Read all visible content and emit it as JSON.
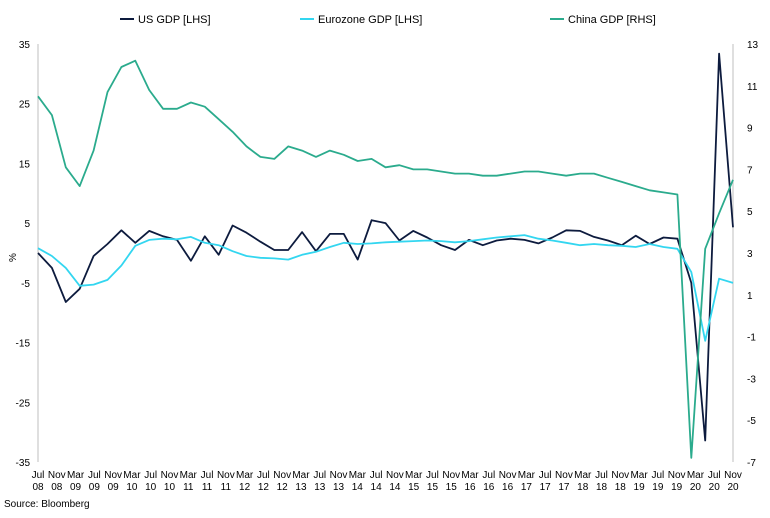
{
  "chart_data": {
    "type": "line",
    "title": "",
    "ylabel": "%",
    "source": "Source: Bloomberg",
    "x": [
      "Jul 08",
      "Nov 08",
      "Mar 09",
      "Jul 09",
      "Nov 09",
      "Mar 10",
      "Jul 10",
      "Nov 10",
      "Mar 11",
      "Jul 11",
      "Nov 11",
      "Mar 12",
      "Jul 12",
      "Nov 12",
      "Mar 13",
      "Jul 13",
      "Nov 13",
      "Mar 14",
      "Jul 14",
      "Nov 14",
      "Mar 15",
      "Jul 15",
      "Nov 15",
      "Mar 16",
      "Jul 16",
      "Nov 16",
      "Mar 17",
      "Jul 17",
      "Nov 17",
      "Mar 18",
      "Jul 18",
      "Nov 18",
      "Mar 19",
      "Jul 19",
      "Nov 19",
      "Mar 20",
      "Jul 20",
      "Nov 20"
    ],
    "x_tick_labels": [
      {
        "m": "Jul",
        "y": "08"
      },
      {
        "m": "Nov",
        "y": "08"
      },
      {
        "m": "Mar",
        "y": "09"
      },
      {
        "m": "Jul",
        "y": "09"
      },
      {
        "m": "Nov",
        "y": "09"
      },
      {
        "m": "Mar",
        "y": "10"
      },
      {
        "m": "Jul",
        "y": "10"
      },
      {
        "m": "Nov",
        "y": "10"
      },
      {
        "m": "Mar",
        "y": "11"
      },
      {
        "m": "Jul",
        "y": "11"
      },
      {
        "m": "Nov",
        "y": "11"
      },
      {
        "m": "Mar",
        "y": "12"
      },
      {
        "m": "Jul",
        "y": "12"
      },
      {
        "m": "Nov",
        "y": "12"
      },
      {
        "m": "Mar",
        "y": "13"
      },
      {
        "m": "Jul",
        "y": "13"
      },
      {
        "m": "Nov",
        "y": "13"
      },
      {
        "m": "Mar",
        "y": "14"
      },
      {
        "m": "Jul",
        "y": "14"
      },
      {
        "m": "Nov",
        "y": "14"
      },
      {
        "m": "Mar",
        "y": "15"
      },
      {
        "m": "Jul",
        "y": "15"
      },
      {
        "m": "Nov",
        "y": "15"
      },
      {
        "m": "Mar",
        "y": "16"
      },
      {
        "m": "Jul",
        "y": "16"
      },
      {
        "m": "Nov",
        "y": "16"
      },
      {
        "m": "Mar",
        "y": "17"
      },
      {
        "m": "Jul",
        "y": "17"
      },
      {
        "m": "Nov",
        "y": "17"
      },
      {
        "m": "Mar",
        "y": "18"
      },
      {
        "m": "Jul",
        "y": "18"
      },
      {
        "m": "Nov",
        "y": "18"
      },
      {
        "m": "Mar",
        "y": "19"
      },
      {
        "m": "Jul",
        "y": "19"
      },
      {
        "m": "Nov",
        "y": "19"
      },
      {
        "m": "Mar",
        "y": "20"
      },
      {
        "m": "Jul",
        "y": "20"
      },
      {
        "m": "Nov",
        "y": "20"
      }
    ],
    "y_left": {
      "ticks": [
        35,
        25,
        15,
        5,
        -5,
        -15,
        -25,
        -35
      ],
      "ylim": [
        -35,
        35
      ]
    },
    "y_right": {
      "ticks": [
        13,
        11,
        9,
        7,
        5,
        3,
        1,
        -1,
        -3,
        -5,
        -7
      ],
      "ylim": [
        -7,
        13
      ]
    },
    "legend": {
      "placement": "top"
    },
    "grid": false,
    "series": [
      {
        "name": "US GDP [LHS]",
        "axis": "left",
        "color": "#0d1b3e",
        "values": [
          [
            0,
            0
          ],
          [
            0.5,
            -2.5
          ],
          [
            1,
            -8.2
          ],
          [
            1.5,
            -6
          ],
          [
            2,
            -0.5
          ],
          [
            2.5,
            1.5
          ],
          [
            3,
            3.8
          ],
          [
            3.5,
            1.7
          ],
          [
            4,
            3.7
          ],
          [
            4.5,
            2.8
          ],
          [
            5,
            2.2
          ],
          [
            5.5,
            -1.3
          ],
          [
            6,
            2.8
          ],
          [
            6.5,
            -0.3
          ],
          [
            7,
            4.6
          ],
          [
            7.5,
            3.4
          ],
          [
            8,
            1.9
          ],
          [
            8.5,
            0.5
          ],
          [
            9,
            0.5
          ],
          [
            9.5,
            3.5
          ],
          [
            10,
            0.3
          ],
          [
            10.5,
            3.2
          ],
          [
            11,
            3.2
          ],
          [
            11.5,
            -1.1
          ],
          [
            12,
            5.5
          ],
          [
            12.5,
            5
          ],
          [
            13,
            2.1
          ],
          [
            13.5,
            3.7
          ],
          [
            14,
            2.6
          ],
          [
            14.5,
            1.3
          ],
          [
            15,
            0.5
          ],
          [
            15.5,
            2.2
          ],
          [
            16,
            1.3
          ],
          [
            16.5,
            2.1
          ],
          [
            17,
            2.4
          ],
          [
            17.5,
            2.2
          ],
          [
            18,
            1.6
          ],
          [
            18.5,
            2.6
          ],
          [
            19,
            3.8
          ],
          [
            19.5,
            3.7
          ],
          [
            20,
            2.7
          ],
          [
            20.5,
            2.1
          ],
          [
            21,
            1.3
          ],
          [
            21.5,
            2.9
          ],
          [
            22,
            1.5
          ],
          [
            22.5,
            2.6
          ],
          [
            23,
            2.4
          ],
          [
            23.5,
            -5
          ],
          [
            24,
            -31.4
          ],
          [
            24.5,
            33.4
          ],
          [
            25,
            4.3
          ]
        ]
      },
      {
        "name": "Eurozone GDP [LHS]",
        "axis": "left",
        "color": "#33d6f0",
        "values": [
          [
            0,
            0.8
          ],
          [
            0.5,
            -0.5
          ],
          [
            1,
            -2.5
          ],
          [
            1.5,
            -5.5
          ],
          [
            2,
            -5.3
          ],
          [
            2.5,
            -4.5
          ],
          [
            3,
            -2.1
          ],
          [
            3.5,
            1.2
          ],
          [
            4,
            2.2
          ],
          [
            4.5,
            2.4
          ],
          [
            5,
            2.3
          ],
          [
            5.5,
            2.7
          ],
          [
            6,
            1.7
          ],
          [
            6.5,
            1.3
          ],
          [
            7,
            0.3
          ],
          [
            7.5,
            -0.5
          ],
          [
            8,
            -0.8
          ],
          [
            8.5,
            -0.9
          ],
          [
            9,
            -1.1
          ],
          [
            9.5,
            -0.3
          ],
          [
            10,
            0.2
          ],
          [
            10.5,
            1
          ],
          [
            11,
            1.7
          ],
          [
            11.5,
            1.5
          ],
          [
            12,
            1.6
          ],
          [
            12.5,
            1.8
          ],
          [
            13,
            1.9
          ],
          [
            13.5,
            2
          ],
          [
            14,
            2.1
          ],
          [
            14.5,
            2
          ],
          [
            15,
            1.8
          ],
          [
            15.5,
            2
          ],
          [
            16,
            2.3
          ],
          [
            16.5,
            2.6
          ],
          [
            17,
            2.8
          ],
          [
            17.5,
            3
          ],
          [
            18,
            2.4
          ],
          [
            18.5,
            2.1
          ],
          [
            19,
            1.7
          ],
          [
            19.5,
            1.3
          ],
          [
            20,
            1.5
          ],
          [
            20.5,
            1.3
          ],
          [
            21,
            1.2
          ],
          [
            21.5,
            1
          ],
          [
            22,
            1.5
          ],
          [
            22.5,
            1
          ],
          [
            23,
            0.7
          ],
          [
            23.5,
            -3.2
          ],
          [
            24,
            -14.7
          ],
          [
            24.5,
            -4.3
          ],
          [
            25,
            -5
          ]
        ]
      },
      {
        "name": "China GDP [RHS]",
        "axis": "right",
        "color": "#2bab8d",
        "values": [
          [
            0,
            10.5
          ],
          [
            0.5,
            9.6
          ],
          [
            1,
            7.1
          ],
          [
            1.5,
            6.2
          ],
          [
            2,
            7.9
          ],
          [
            2.5,
            10.7
          ],
          [
            3,
            11.9
          ],
          [
            3.5,
            12.2
          ],
          [
            4,
            10.8
          ],
          [
            4.5,
            9.9
          ],
          [
            5,
            9.9
          ],
          [
            5.5,
            10.2
          ],
          [
            6,
            10
          ],
          [
            6.5,
            9.4
          ],
          [
            7,
            8.8
          ],
          [
            7.5,
            8.1
          ],
          [
            8,
            7.6
          ],
          [
            8.5,
            7.5
          ],
          [
            9,
            8.1
          ],
          [
            9.5,
            7.9
          ],
          [
            10,
            7.6
          ],
          [
            10.5,
            7.9
          ],
          [
            11,
            7.7
          ],
          [
            11.5,
            7.4
          ],
          [
            12,
            7.5
          ],
          [
            12.5,
            7.1
          ],
          [
            13,
            7.2
          ],
          [
            13.5,
            7
          ],
          [
            14,
            7
          ],
          [
            14.5,
            6.9
          ],
          [
            15,
            6.8
          ],
          [
            15.5,
            6.8
          ],
          [
            16,
            6.7
          ],
          [
            16.5,
            6.7
          ],
          [
            17,
            6.8
          ],
          [
            17.5,
            6.9
          ],
          [
            18,
            6.9
          ],
          [
            18.5,
            6.8
          ],
          [
            19,
            6.7
          ],
          [
            19.5,
            6.8
          ],
          [
            20,
            6.8
          ],
          [
            20.5,
            6.6
          ],
          [
            21,
            6.4
          ],
          [
            21.5,
            6.2
          ],
          [
            22,
            6
          ],
          [
            22.5,
            5.9
          ],
          [
            23,
            5.8
          ],
          [
            23.5,
            -6.8
          ],
          [
            24,
            3.2
          ],
          [
            24.5,
            4.9
          ],
          [
            25,
            6.5
          ]
        ]
      }
    ]
  }
}
